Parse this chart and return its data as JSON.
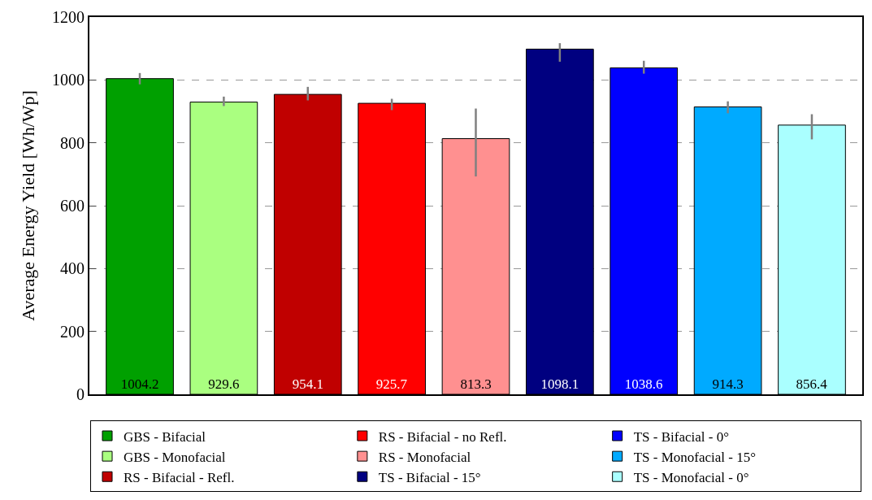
{
  "chart_data": {
    "type": "bar",
    "ylabel": "Average Energy Yield [Wh/Wp]",
    "categories": [
      null,
      null,
      null,
      null,
      null,
      null,
      null,
      null,
      null
    ],
    "ylim": [
      0,
      1200
    ],
    "yticks": [
      0,
      200,
      400,
      600,
      800,
      1000,
      1200
    ],
    "grid": "y",
    "legend": "bottom",
    "data_labels": true,
    "series": [
      {
        "name": "GBS - Bifacial",
        "color": "#00a000",
        "values": [
          1004.2,
          null,
          null,
          null,
          null,
          null,
          null,
          null,
          null
        ],
        "errors": [
          [
            986,
            1022
          ],
          null,
          null,
          null,
          null,
          null,
          null,
          null,
          null
        ]
      },
      {
        "name": "GBS - Monofacial",
        "color": "#aaff80",
        "values": [
          null,
          929.6,
          null,
          null,
          null,
          null,
          null,
          null,
          null
        ],
        "errors": [
          null,
          [
            917,
            947
          ],
          null,
          null,
          null,
          null,
          null,
          null,
          null
        ]
      },
      {
        "name": "RS - Bifacial - Refl.",
        "color": "#c00000",
        "values": [
          null,
          null,
          954.1,
          null,
          null,
          null,
          null,
          null,
          null
        ],
        "errors": [
          null,
          null,
          [
            935,
            978
          ],
          null,
          null,
          null,
          null,
          null,
          null
        ]
      },
      {
        "name": "RS - Bifacial - no Refl.",
        "color": "#ff0000",
        "values": [
          null,
          null,
          null,
          925.7,
          null,
          null,
          null,
          null,
          null
        ],
        "errors": [
          null,
          null,
          null,
          [
            904,
            940
          ],
          null,
          null,
          null,
          null,
          null
        ]
      },
      {
        "name": "RS - Monofacial",
        "color": "#ff9090",
        "values": [
          null,
          null,
          null,
          null,
          813.3,
          null,
          null,
          null,
          null
        ],
        "errors": [
          null,
          null,
          null,
          null,
          [
            693,
            909
          ],
          null,
          null,
          null,
          null
        ]
      },
      {
        "name": "TS - Bifacial - 15°",
        "color": "#000080",
        "values": [
          null,
          null,
          null,
          null,
          null,
          1098.1,
          null,
          null,
          null
        ],
        "errors": [
          null,
          null,
          null,
          null,
          null,
          [
            1058,
            1117
          ],
          null,
          null,
          null
        ]
      },
      {
        "name": "TS - Bifacial - 0°",
        "color": "#0000ff",
        "values": [
          null,
          null,
          null,
          null,
          null,
          null,
          1038.6,
          null,
          null
        ],
        "errors": [
          null,
          null,
          null,
          null,
          null,
          null,
          [
            1020,
            1061
          ],
          null,
          null
        ]
      },
      {
        "name": "TS - Monofacial - 15°",
        "color": "#00aaff",
        "values": [
          null,
          null,
          null,
          null,
          null,
          null,
          null,
          914.3,
          null
        ],
        "errors": [
          null,
          null,
          null,
          null,
          null,
          null,
          null,
          [
            894,
            932
          ],
          null
        ]
      },
      {
        "name": "TS - Monofacial - 0°",
        "color": "#aaffff",
        "values": [
          null,
          null,
          null,
          null,
          null,
          null,
          null,
          null,
          856.4
        ],
        "errors": [
          null,
          null,
          null,
          null,
          null,
          null,
          null,
          null,
          [
            811,
            891
          ]
        ]
      }
    ]
  }
}
